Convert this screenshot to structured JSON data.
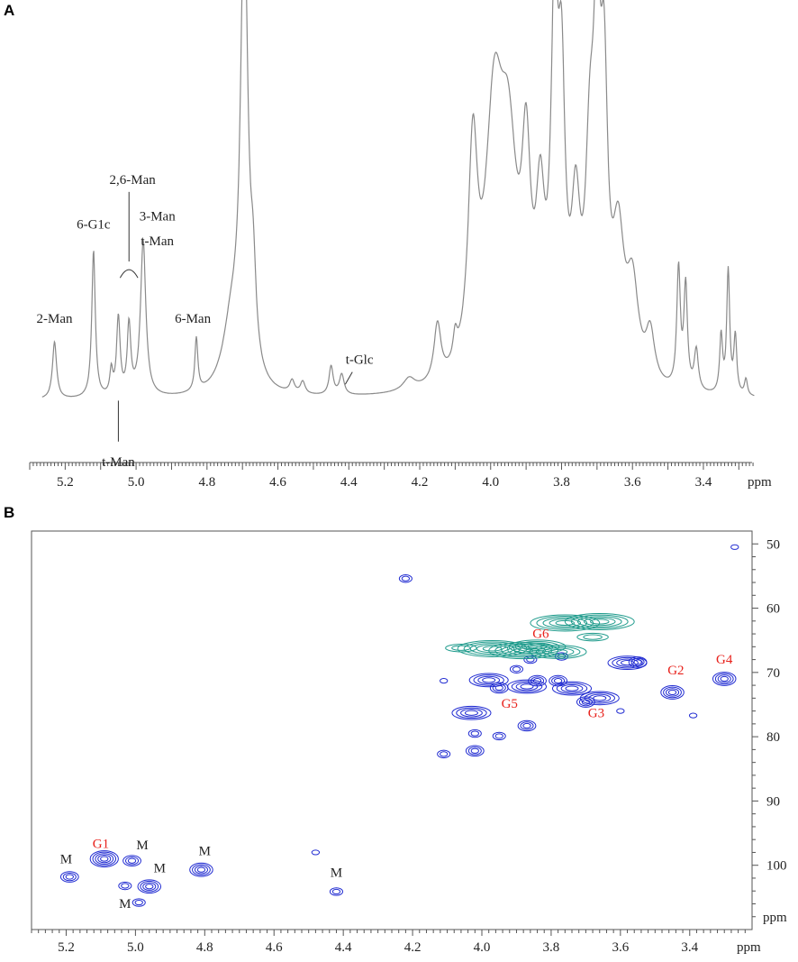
{
  "panels": {
    "a": "A",
    "b": "B"
  },
  "chart_data": [
    {
      "type": "line",
      "panel": "A",
      "xlabel": "ppm",
      "xlim": [
        5.3,
        3.25
      ],
      "x_ticks": [
        "5.2",
        "5.0",
        "4.8",
        "4.6",
        "4.4",
        "4.2",
        "4.0",
        "3.8",
        "3.6",
        "3.4"
      ],
      "line_color": "#8a8a8a",
      "baseline": 0.03,
      "peaks": [
        {
          "ppm": 5.23,
          "h": 0.14,
          "w": 0.007
        },
        {
          "ppm": 5.12,
          "h": 0.36,
          "w": 0.006
        },
        {
          "ppm": 5.07,
          "h": 0.06,
          "w": 0.005
        },
        {
          "ppm": 5.05,
          "h": 0.19,
          "w": 0.006
        },
        {
          "ppm": 5.02,
          "h": 0.17,
          "w": 0.006
        },
        {
          "ppm": 4.98,
          "h": 0.38,
          "w": 0.009
        },
        {
          "ppm": 4.83,
          "h": 0.13,
          "w": 0.005
        },
        {
          "ppm": 4.73,
          "h": 0.16,
          "w": 0.03
        },
        {
          "ppm": 4.695,
          "h": 1.15,
          "w": 0.012
        },
        {
          "ppm": 4.67,
          "h": 0.2,
          "w": 0.01
        },
        {
          "ppm": 4.56,
          "h": 0.03,
          "w": 0.008
        },
        {
          "ppm": 4.53,
          "h": 0.03,
          "w": 0.008
        },
        {
          "ppm": 4.45,
          "h": 0.07,
          "w": 0.007
        },
        {
          "ppm": 4.42,
          "h": 0.05,
          "w": 0.008
        },
        {
          "ppm": 4.23,
          "h": 0.03,
          "w": 0.02
        },
        {
          "ppm": 4.15,
          "h": 0.14,
          "w": 0.012
        },
        {
          "ppm": 4.1,
          "h": 0.06,
          "w": 0.007
        },
        {
          "ppm": 4.05,
          "h": 0.52,
          "w": 0.016
        },
        {
          "ppm": 3.99,
          "h": 0.6,
          "w": 0.03
        },
        {
          "ppm": 3.95,
          "h": 0.48,
          "w": 0.03
        },
        {
          "ppm": 3.9,
          "h": 0.45,
          "w": 0.015
        },
        {
          "ppm": 3.86,
          "h": 0.35,
          "w": 0.015
        },
        {
          "ppm": 3.82,
          "h": 0.8,
          "w": 0.012
        },
        {
          "ppm": 3.8,
          "h": 0.6,
          "w": 0.012
        },
        {
          "ppm": 3.76,
          "h": 0.35,
          "w": 0.015
        },
        {
          "ppm": 3.72,
          "h": 0.45,
          "w": 0.015
        },
        {
          "ppm": 3.7,
          "h": 0.72,
          "w": 0.012
        },
        {
          "ppm": 3.68,
          "h": 0.6,
          "w": 0.012
        },
        {
          "ppm": 3.64,
          "h": 0.32,
          "w": 0.02
        },
        {
          "ppm": 3.6,
          "h": 0.22,
          "w": 0.02
        },
        {
          "ppm": 3.55,
          "h": 0.12,
          "w": 0.015
        },
        {
          "ppm": 3.47,
          "h": 0.29,
          "w": 0.006
        },
        {
          "ppm": 3.45,
          "h": 0.25,
          "w": 0.006
        },
        {
          "ppm": 3.42,
          "h": 0.1,
          "w": 0.007
        },
        {
          "ppm": 3.35,
          "h": 0.14,
          "w": 0.005
        },
        {
          "ppm": 3.33,
          "h": 0.3,
          "w": 0.005
        },
        {
          "ppm": 3.31,
          "h": 0.14,
          "w": 0.005
        },
        {
          "ppm": 3.28,
          "h": 0.04,
          "w": 0.005
        }
      ],
      "annotations": [
        {
          "text": "2-Man",
          "ppm": 5.23,
          "level": 0.22
        },
        {
          "text": "6-G1c",
          "ppm": 5.12,
          "level": 0.45
        },
        {
          "text": "2,6-Man",
          "ppm": 5.01,
          "level": 0.56
        },
        {
          "text": "3-Man",
          "ppm": 4.94,
          "level": 0.47
        },
        {
          "text": "t-Man",
          "ppm": 4.94,
          "level": 0.41
        },
        {
          "text": "6-Man",
          "ppm": 4.84,
          "level": 0.22
        },
        {
          "text": "t-Glc",
          "ppm": 4.37,
          "level": 0.12
        },
        {
          "text": "t-Man",
          "ppm": 5.05,
          "level": -0.13
        }
      ]
    },
    {
      "type": "scatter",
      "panel": "B",
      "xlabel": "ppm",
      "ylabel": "ppm",
      "xlim": [
        5.3,
        3.22
      ],
      "ylim": [
        48,
        110
      ],
      "x_ticks": [
        "5.2",
        "5.0",
        "4.8",
        "4.6",
        "4.4",
        "4.2",
        "4.0",
        "3.8",
        "3.6",
        "3.4"
      ],
      "y_ticks": [
        "50",
        "60",
        "70",
        "80",
        "90",
        "100"
      ],
      "colors": {
        "blue": "#1f2ad1",
        "teal": "#1f9b8c",
        "label_red": "#e8221c"
      },
      "series": [
        {
          "color": "blue",
          "points": [
            [
              3.27,
              50.5,
              1
            ],
            [
              4.22,
              55.4,
              2
            ],
            [
              4.11,
              71.3,
              1
            ],
            [
              3.98,
              71.2,
              4
            ],
            [
              3.95,
              72.4,
              3
            ],
            [
              3.87,
              72.2,
              4
            ],
            [
              3.84,
              71.3,
              3
            ],
            [
              3.78,
              71.3,
              3
            ],
            [
              3.74,
              72.5,
              4
            ],
            [
              3.66,
              74.0,
              4
            ],
            [
              3.7,
              74.6,
              3
            ],
            [
              3.58,
              68.5,
              4
            ],
            [
              3.55,
              68.4,
              3
            ],
            [
              3.86,
              68.0,
              2
            ],
            [
              3.77,
              67.5,
              2
            ],
            [
              3.9,
              69.5,
              2
            ],
            [
              3.45,
              73.1,
              4
            ],
            [
              3.39,
              76.7,
              1
            ],
            [
              3.3,
              71.0,
              4
            ],
            [
              4.03,
              76.3,
              4
            ],
            [
              3.95,
              79.9,
              2
            ],
            [
              3.87,
              78.3,
              3
            ],
            [
              4.02,
              79.5,
              2
            ],
            [
              4.02,
              82.2,
              3
            ],
            [
              4.11,
              82.7,
              2
            ],
            [
              3.6,
              76.0,
              1
            ],
            [
              5.19,
              101.8,
              3
            ],
            [
              5.09,
              99.0,
              5
            ],
            [
              5.01,
              99.3,
              3
            ],
            [
              4.96,
              103.3,
              4
            ],
            [
              4.81,
              100.7,
              4
            ],
            [
              5.03,
              103.2,
              2
            ],
            [
              4.99,
              105.8,
              2
            ],
            [
              4.42,
              104.1,
              2
            ],
            [
              4.48,
              98.0,
              1
            ]
          ]
        },
        {
          "color": "teal",
          "points": [
            [
              3.76,
              62.3,
              5
            ],
            [
              3.66,
              62.1,
              5
            ],
            [
              3.97,
              66.3,
              5
            ],
            [
              3.88,
              66.6,
              5
            ],
            [
              3.84,
              66.0,
              4
            ],
            [
              3.78,
              66.8,
              4
            ],
            [
              4.06,
              66.2,
              2
            ],
            [
              3.68,
              64.5,
              2
            ]
          ]
        }
      ],
      "labels": [
        {
          "text": "G1",
          "ppm": 5.1,
          "c": 97.3,
          "color": "red"
        },
        {
          "text": "G2",
          "ppm": 3.44,
          "c": 70.3,
          "color": "red"
        },
        {
          "text": "G3",
          "ppm": 3.67,
          "c": 77.0,
          "color": "red"
        },
        {
          "text": "G4",
          "ppm": 3.3,
          "c": 68.6,
          "color": "red"
        },
        {
          "text": "G5",
          "ppm": 3.92,
          "c": 75.5,
          "color": "red"
        },
        {
          "text": "G6",
          "ppm": 3.83,
          "c": 64.6,
          "color": "red"
        },
        {
          "text": "M",
          "ppm": 5.2,
          "c": 99.7,
          "color": "black"
        },
        {
          "text": "M",
          "ppm": 4.98,
          "c": 97.5,
          "color": "black"
        },
        {
          "text": "M",
          "ppm": 4.93,
          "c": 101.1,
          "color": "black"
        },
        {
          "text": "M",
          "ppm": 4.8,
          "c": 98.4,
          "color": "black"
        },
        {
          "text": "M",
          "ppm": 5.03,
          "c": 106.6,
          "color": "black"
        },
        {
          "text": "M",
          "ppm": 4.42,
          "c": 101.8,
          "color": "black"
        }
      ]
    }
  ]
}
